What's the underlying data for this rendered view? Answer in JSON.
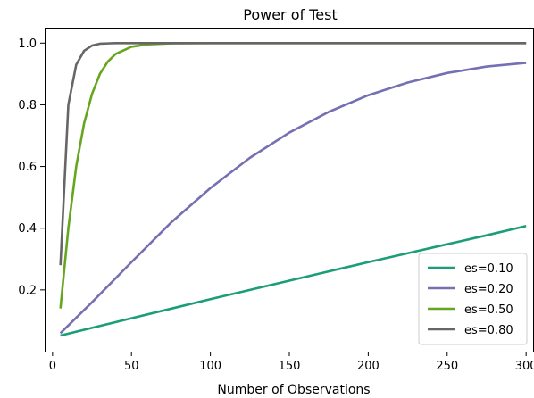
{
  "chart_data": {
    "type": "line",
    "title": "Power of Test",
    "xlabel": "Number of Observations",
    "ylabel": "",
    "xlim": [
      -5,
      305
    ],
    "ylim": [
      0,
      1.05
    ],
    "xticks": [
      0,
      50,
      100,
      150,
      200,
      250,
      300
    ],
    "xtick_labels": [
      "0",
      "50",
      "100",
      "150",
      "200",
      "250",
      "300"
    ],
    "yticks": [
      0.2,
      0.4,
      0.6,
      0.8,
      1.0
    ],
    "ytick_labels": [
      "0.2",
      "0.4",
      "0.6",
      "0.8",
      "1.0"
    ],
    "grid": false,
    "legend_position": "lower-right",
    "series": [
      {
        "name": "es=0.10",
        "color": "#1b9e77",
        "x": [
          5,
          25,
          50,
          75,
          100,
          125,
          150,
          175,
          200,
          225,
          250,
          275,
          300
        ],
        "y": [
          0.052,
          0.077,
          0.108,
          0.139,
          0.17,
          0.2,
          0.23,
          0.26,
          0.29,
          0.319,
          0.348,
          0.377,
          0.407
        ]
      },
      {
        "name": "es=0.20",
        "color": "#7570b3",
        "x": [
          5,
          25,
          50,
          75,
          100,
          125,
          150,
          175,
          200,
          225,
          250,
          275,
          300
        ],
        "y": [
          0.06,
          0.16,
          0.29,
          0.418,
          0.53,
          0.628,
          0.71,
          0.777,
          0.831,
          0.872,
          0.903,
          0.924,
          0.936
        ]
      },
      {
        "name": "es=0.50",
        "color": "#66a61e",
        "x": [
          5,
          10,
          15,
          20,
          25,
          30,
          35,
          40,
          50,
          60,
          75,
          100,
          150,
          200,
          300
        ],
        "y": [
          0.14,
          0.4,
          0.6,
          0.74,
          0.835,
          0.9,
          0.94,
          0.965,
          0.988,
          0.996,
          0.999,
          1.0,
          1.0,
          1.0,
          1.0
        ]
      },
      {
        "name": "es=0.80",
        "color": "#666666",
        "x": [
          5,
          10,
          15,
          20,
          25,
          30,
          35,
          40,
          50,
          100,
          200,
          300
        ],
        "y": [
          0.28,
          0.8,
          0.93,
          0.975,
          0.992,
          0.998,
          0.999,
          1.0,
          1.0,
          1.0,
          1.0,
          1.0
        ]
      }
    ]
  }
}
